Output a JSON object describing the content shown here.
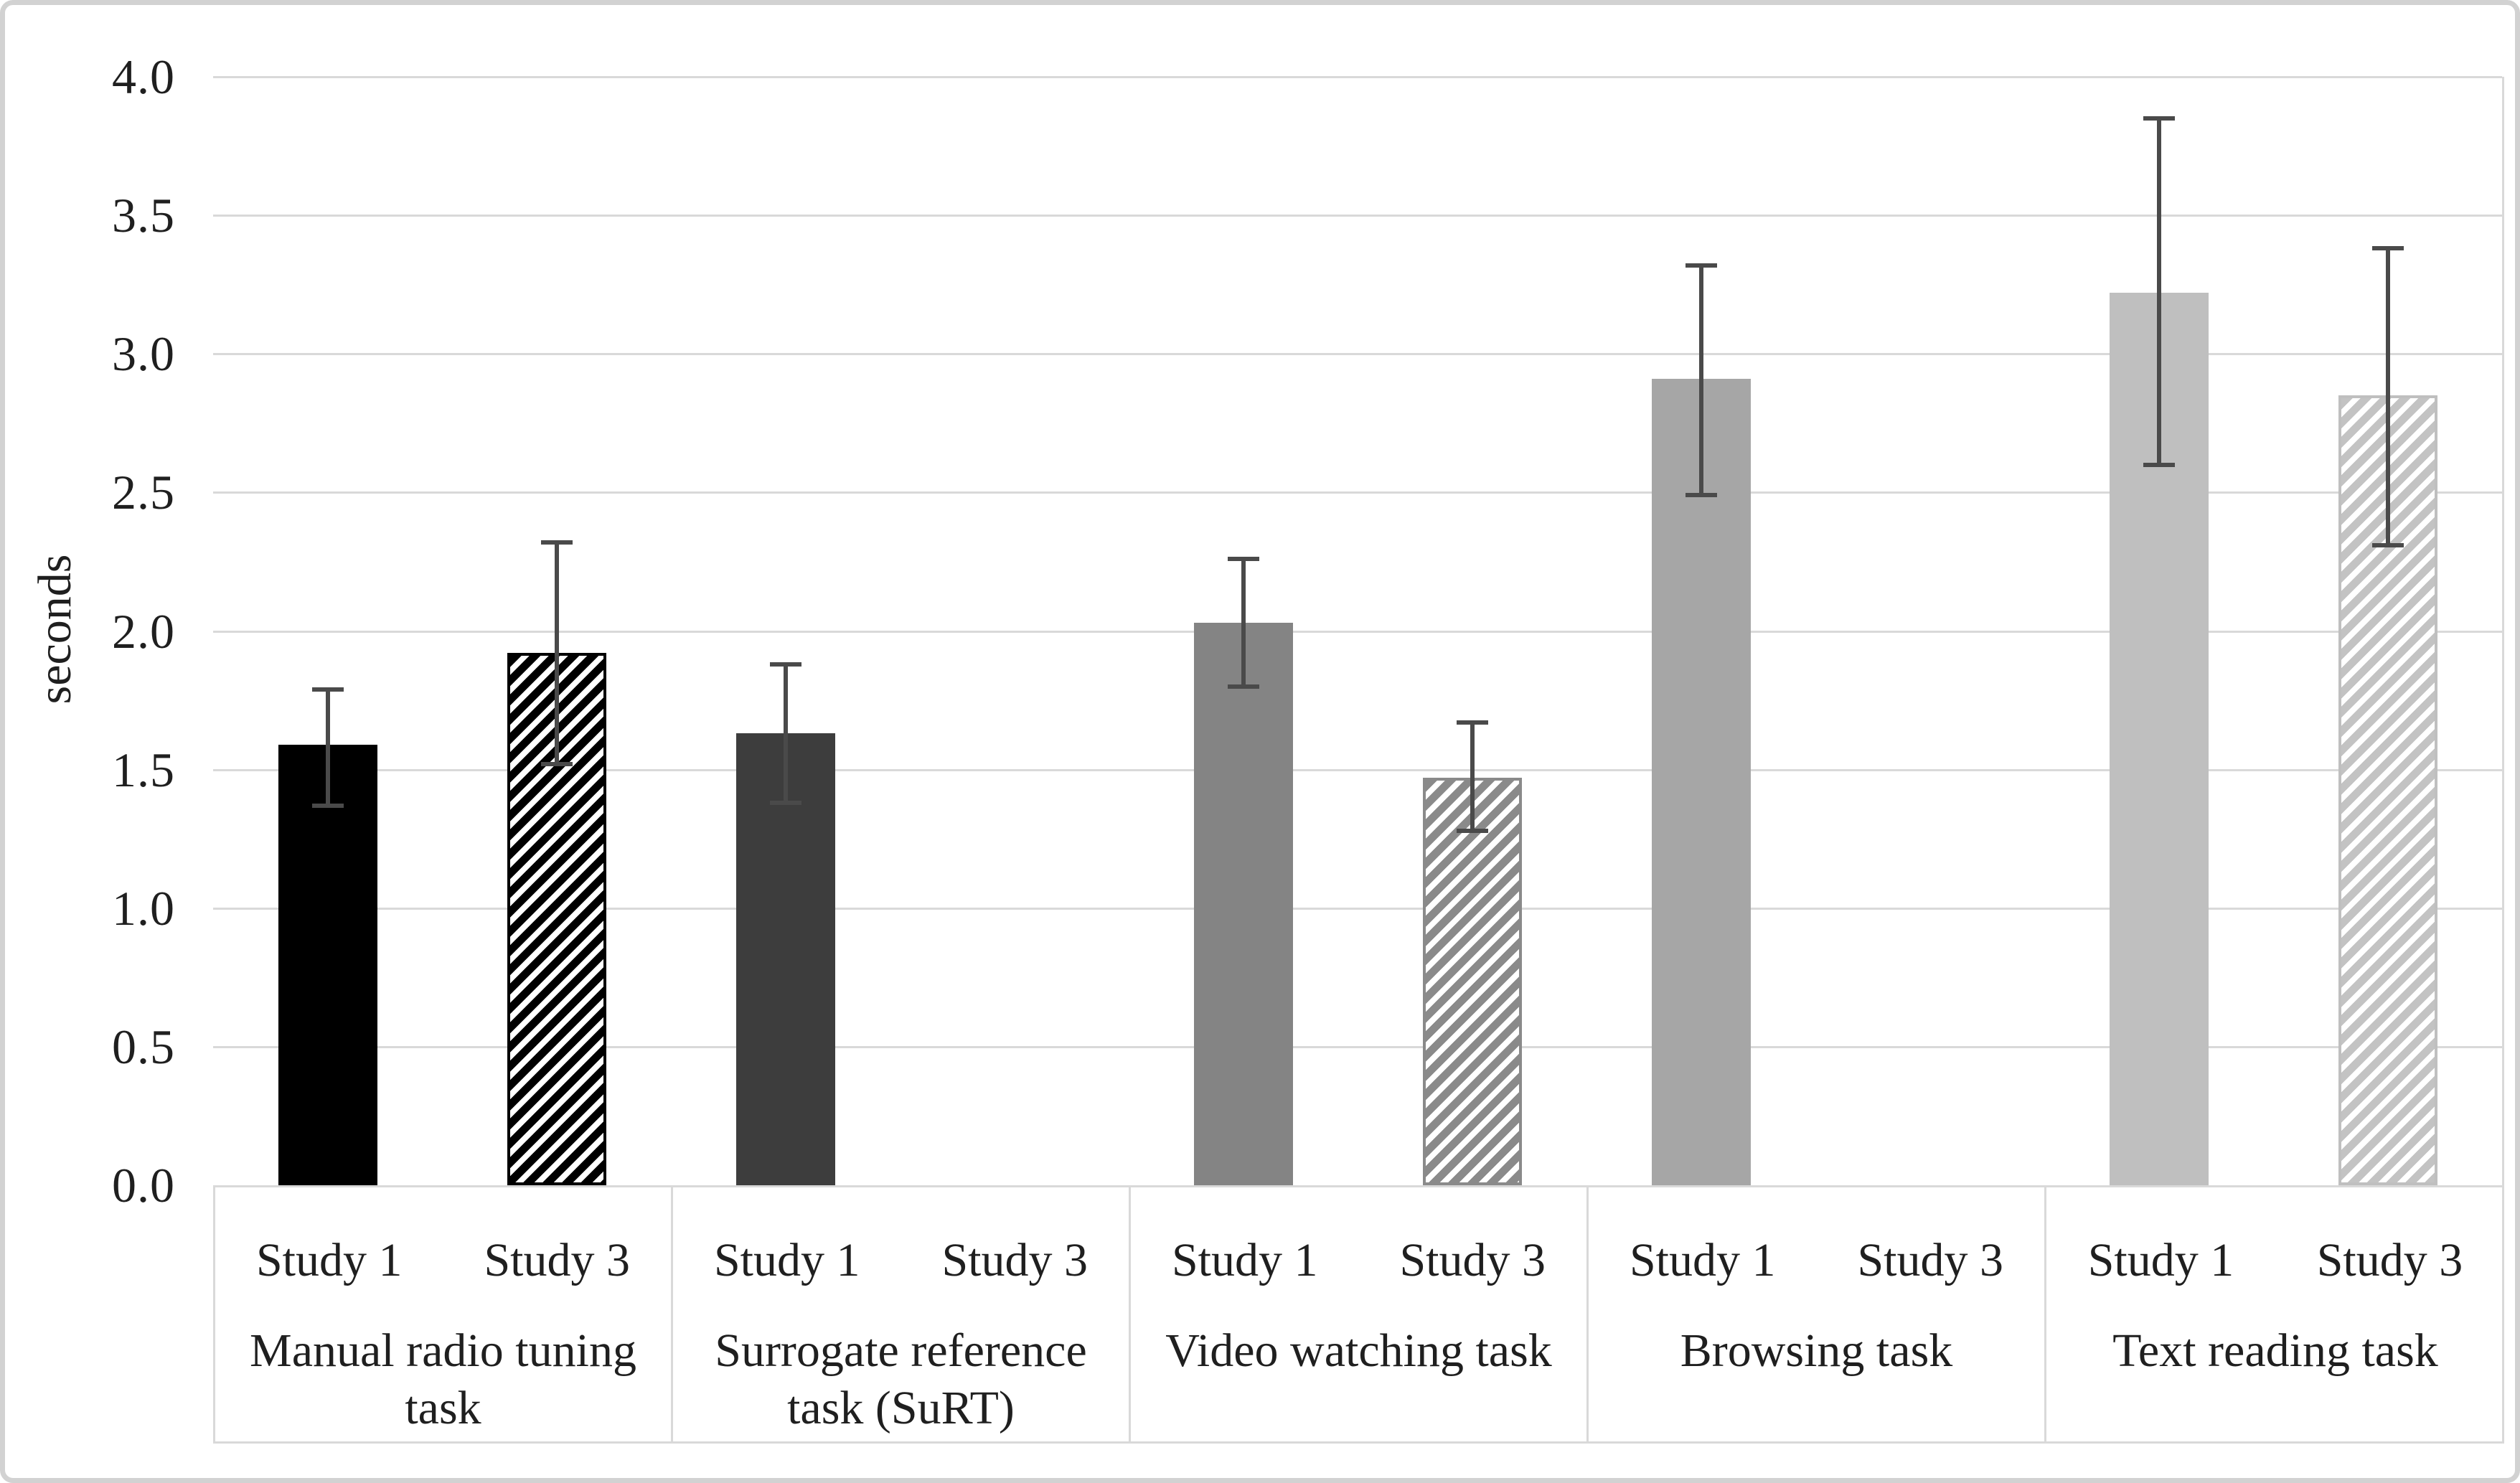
{
  "chart_data": {
    "type": "bar",
    "title": "",
    "xlabel": "",
    "ylabel": "seconds",
    "ylim": [
      0.0,
      4.0
    ],
    "ytick_step": 0.5,
    "ytick_labels": [
      "0.0",
      "0.5",
      "1.0",
      "1.5",
      "2.0",
      "2.5",
      "3.0",
      "3.5",
      "4.0"
    ],
    "grid": "horizontal",
    "legend_position": "none",
    "categories": [
      "Manual radio tuning task",
      "Surrogate reference task (SuRT)",
      "Video watching task",
      "Browsing task",
      "Text reading task"
    ],
    "subcategories": [
      "Study 1",
      "Study 3"
    ],
    "series": [
      {
        "name": "Study 1",
        "values": [
          1.59,
          1.63,
          2.03,
          2.91,
          3.22
        ],
        "error_low": [
          1.37,
          1.38,
          1.8,
          2.49,
          2.6
        ],
        "error_high": [
          1.79,
          1.88,
          2.26,
          3.32,
          3.85
        ],
        "fills": [
          {
            "style": "solid",
            "color": "#000000"
          },
          {
            "style": "solid",
            "color": "#3d3d3d"
          },
          {
            "style": "solid",
            "color": "#848484"
          },
          {
            "style": "solid",
            "color": "#a6a6a6"
          },
          {
            "style": "solid",
            "color": "#bfbfbf"
          }
        ]
      },
      {
        "name": "Study 3",
        "values": [
          1.92,
          null,
          1.47,
          null,
          2.85
        ],
        "error_low": [
          1.52,
          null,
          1.28,
          null,
          2.31
        ],
        "error_high": [
          2.32,
          null,
          1.67,
          null,
          3.38
        ],
        "fills": [
          {
            "style": "hatch",
            "color": "#000000",
            "border": "#000000"
          },
          null,
          {
            "style": "hatch",
            "color": "#8a8a8a",
            "border": "#8a8a8a"
          },
          null,
          {
            "style": "hatch",
            "color": "#c3c3c3",
            "border": "#bfbfbf"
          }
        ]
      }
    ],
    "colors": {
      "gridline": "#d9d9d9",
      "axis_box_border": "#d9d9d9",
      "error_bar": "#4a4a4a",
      "text": "#1f1f1f",
      "figure_border": "#d2d2d2",
      "background": "#ffffff"
    }
  }
}
